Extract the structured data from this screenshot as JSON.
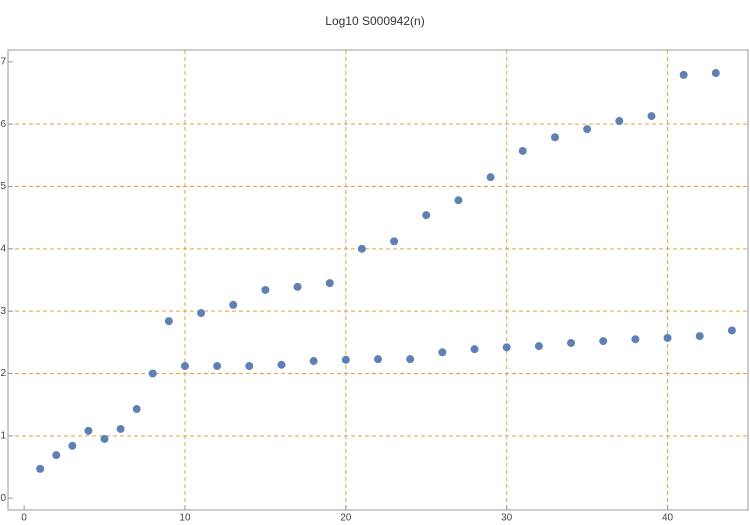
{
  "chart_data": {
    "type": "scatter",
    "title": "Log10 S000942(n)",
    "x": [
      1,
      2,
      3,
      4,
      5,
      6,
      7,
      8,
      9,
      10,
      11,
      12,
      13,
      14,
      15,
      16,
      17,
      18,
      19,
      20,
      21,
      22,
      23,
      24,
      25,
      26,
      27,
      28,
      29,
      30,
      31,
      32,
      33,
      34,
      35,
      36,
      37,
      38,
      39,
      40,
      41,
      42,
      43,
      44
    ],
    "values": [
      0.47,
      0.69,
      0.84,
      1.08,
      0.95,
      1.11,
      1.43,
      2.0,
      2.84,
      2.12,
      2.97,
      2.12,
      3.1,
      2.12,
      3.34,
      2.14,
      3.39,
      2.2,
      3.45,
      2.22,
      4.0,
      2.23,
      4.12,
      2.23,
      4.54,
      2.34,
      4.78,
      2.39,
      5.15,
      2.42,
      5.57,
      2.44,
      5.79,
      2.49,
      5.92,
      2.52,
      6.05,
      2.55,
      6.13,
      2.57,
      6.79,
      2.6,
      6.82,
      2.69
    ],
    "color": "#5e81b5",
    "xlim": [
      -1,
      45
    ],
    "ylim": [
      -0.19,
      7.19
    ],
    "xticks": [
      0,
      10,
      20,
      30,
      40
    ],
    "yticks": [
      0,
      1,
      2,
      3,
      4,
      5,
      6,
      7
    ],
    "x_grid": [
      10,
      20,
      30,
      40
    ],
    "y_grid": [
      1,
      2,
      3,
      4,
      5,
      6
    ],
    "grid_color": "#e8a040"
  }
}
